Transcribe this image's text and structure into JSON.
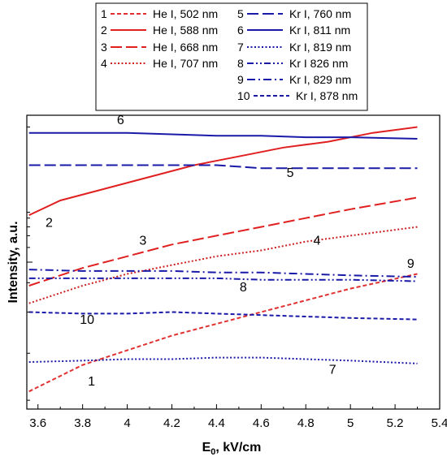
{
  "chart_data": {
    "type": "line",
    "xlabel": "E",
    "xlabel_sub": "0",
    "xlabel_unit": ", kV/cm",
    "ylabel": "Intensity, a.u.",
    "xlim": [
      3.55,
      5.4
    ],
    "ylim": [
      0,
      1
    ],
    "x_ticks": [
      3.6,
      3.8,
      4.0,
      4.2,
      4.4,
      4.6,
      4.8,
      5.0,
      5.2,
      5.4
    ],
    "x_tick_labels": [
      "3.6",
      "3.8",
      "4",
      "4.2",
      "4.4",
      "4.6",
      "4.8",
      "5",
      "5.2",
      "5.4"
    ],
    "grid": false,
    "legend_position": "top",
    "series": [
      {
        "name": "He I, 502 nm",
        "id": "1",
        "color": "#e03030",
        "dash": "short-dash",
        "x": [
          3.56,
          3.8,
          4.0,
          4.2,
          4.4,
          4.6,
          4.8,
          5.0,
          5.3
        ],
        "y": [
          0.06,
          0.15,
          0.2,
          0.25,
          0.29,
          0.33,
          0.37,
          0.41,
          0.46
        ]
      },
      {
        "name": "He I, 588 nm",
        "id": "2",
        "color": "#e02020",
        "dash": "solid",
        "x": [
          3.56,
          3.7,
          3.9,
          4.1,
          4.3,
          4.5,
          4.7,
          4.9,
          5.1,
          5.3
        ],
        "y": [
          0.66,
          0.71,
          0.75,
          0.79,
          0.83,
          0.86,
          0.89,
          0.91,
          0.94,
          0.96
        ]
      },
      {
        "name": "He I, 668 nm",
        "id": "3",
        "color": "#e02020",
        "dash": "long-dash",
        "x": [
          3.56,
          3.8,
          4.0,
          4.2,
          4.4,
          4.6,
          4.8,
          5.0,
          5.3
        ],
        "y": [
          0.42,
          0.48,
          0.52,
          0.56,
          0.59,
          0.62,
          0.65,
          0.68,
          0.72
        ]
      },
      {
        "name": "He I, 707 nm",
        "id": "4",
        "color": "#cc2020",
        "dash": "dot",
        "x": [
          3.56,
          3.8,
          4.0,
          4.2,
          4.4,
          4.6,
          4.8,
          5.0,
          5.3
        ],
        "y": [
          0.36,
          0.42,
          0.46,
          0.49,
          0.52,
          0.54,
          0.57,
          0.59,
          0.62
        ]
      },
      {
        "name": "Kr I, 760 nm",
        "id": "5",
        "color": "#1a1aa8",
        "dash": "long-dash",
        "x": [
          3.56,
          3.8,
          4.0,
          4.2,
          4.4,
          4.6,
          4.8,
          5.0,
          5.3
        ],
        "y": [
          0.83,
          0.83,
          0.83,
          0.83,
          0.83,
          0.82,
          0.82,
          0.82,
          0.82
        ]
      },
      {
        "name": "Kr I, 811 nm",
        "id": "6",
        "color": "#1a1aa8",
        "dash": "solid",
        "x": [
          3.56,
          3.8,
          4.0,
          4.2,
          4.4,
          4.6,
          4.8,
          5.0,
          5.3
        ],
        "y": [
          0.94,
          0.94,
          0.94,
          0.935,
          0.93,
          0.93,
          0.925,
          0.925,
          0.92
        ]
      },
      {
        "name": "Kr I, 819 nm",
        "id": "7",
        "color": "#1a1aa8",
        "dash": "dot",
        "x": [
          3.56,
          3.8,
          4.0,
          4.2,
          4.4,
          4.6,
          4.8,
          5.0,
          5.3
        ],
        "y": [
          0.16,
          0.165,
          0.17,
          0.17,
          0.175,
          0.175,
          0.17,
          0.165,
          0.155
        ]
      },
      {
        "name": "Kr I 826 nm",
        "id": "8",
        "color": "#1a1aa8",
        "dash": "dash-dot-dot",
        "x": [
          3.56,
          3.8,
          4.0,
          4.2,
          4.4,
          4.6,
          4.8,
          5.0,
          5.3
        ],
        "y": [
          0.445,
          0.445,
          0.445,
          0.445,
          0.445,
          0.44,
          0.44,
          0.44,
          0.435
        ]
      },
      {
        "name": "Kr I, 829 nm",
        "id": "9",
        "color": "#1a1aa8",
        "dash": "dash-dot",
        "x": [
          3.56,
          3.8,
          4.0,
          4.2,
          4.4,
          4.6,
          4.8,
          5.0,
          5.3
        ],
        "y": [
          0.475,
          0.47,
          0.47,
          0.47,
          0.465,
          0.465,
          0.46,
          0.455,
          0.45
        ]
      },
      {
        "name": "Kr I, 878 nm",
        "id": "10",
        "color": "#1a1aa8",
        "dash": "short-dash",
        "x": [
          3.56,
          3.8,
          4.0,
          4.2,
          4.4,
          4.6,
          4.8,
          5.0,
          5.3
        ],
        "y": [
          0.33,
          0.325,
          0.325,
          0.33,
          0.325,
          0.32,
          0.315,
          0.31,
          0.305
        ]
      }
    ],
    "curve_labels": [
      {
        "text": "1",
        "x": 3.84,
        "y": 0.08
      },
      {
        "text": "2",
        "x": 3.65,
        "y": 0.62
      },
      {
        "text": "3",
        "x": 4.07,
        "y": 0.56
      },
      {
        "text": "4",
        "x": 4.85,
        "y": 0.56
      },
      {
        "text": "5",
        "x": 4.73,
        "y": 0.79
      },
      {
        "text": "6",
        "x": 3.97,
        "y": 0.97
      },
      {
        "text": "7",
        "x": 4.92,
        "y": 0.12
      },
      {
        "text": "8",
        "x": 4.52,
        "y": 0.4
      },
      {
        "text": "9",
        "x": 5.27,
        "y": 0.48
      },
      {
        "text": "10",
        "x": 3.82,
        "y": 0.29
      }
    ]
  }
}
